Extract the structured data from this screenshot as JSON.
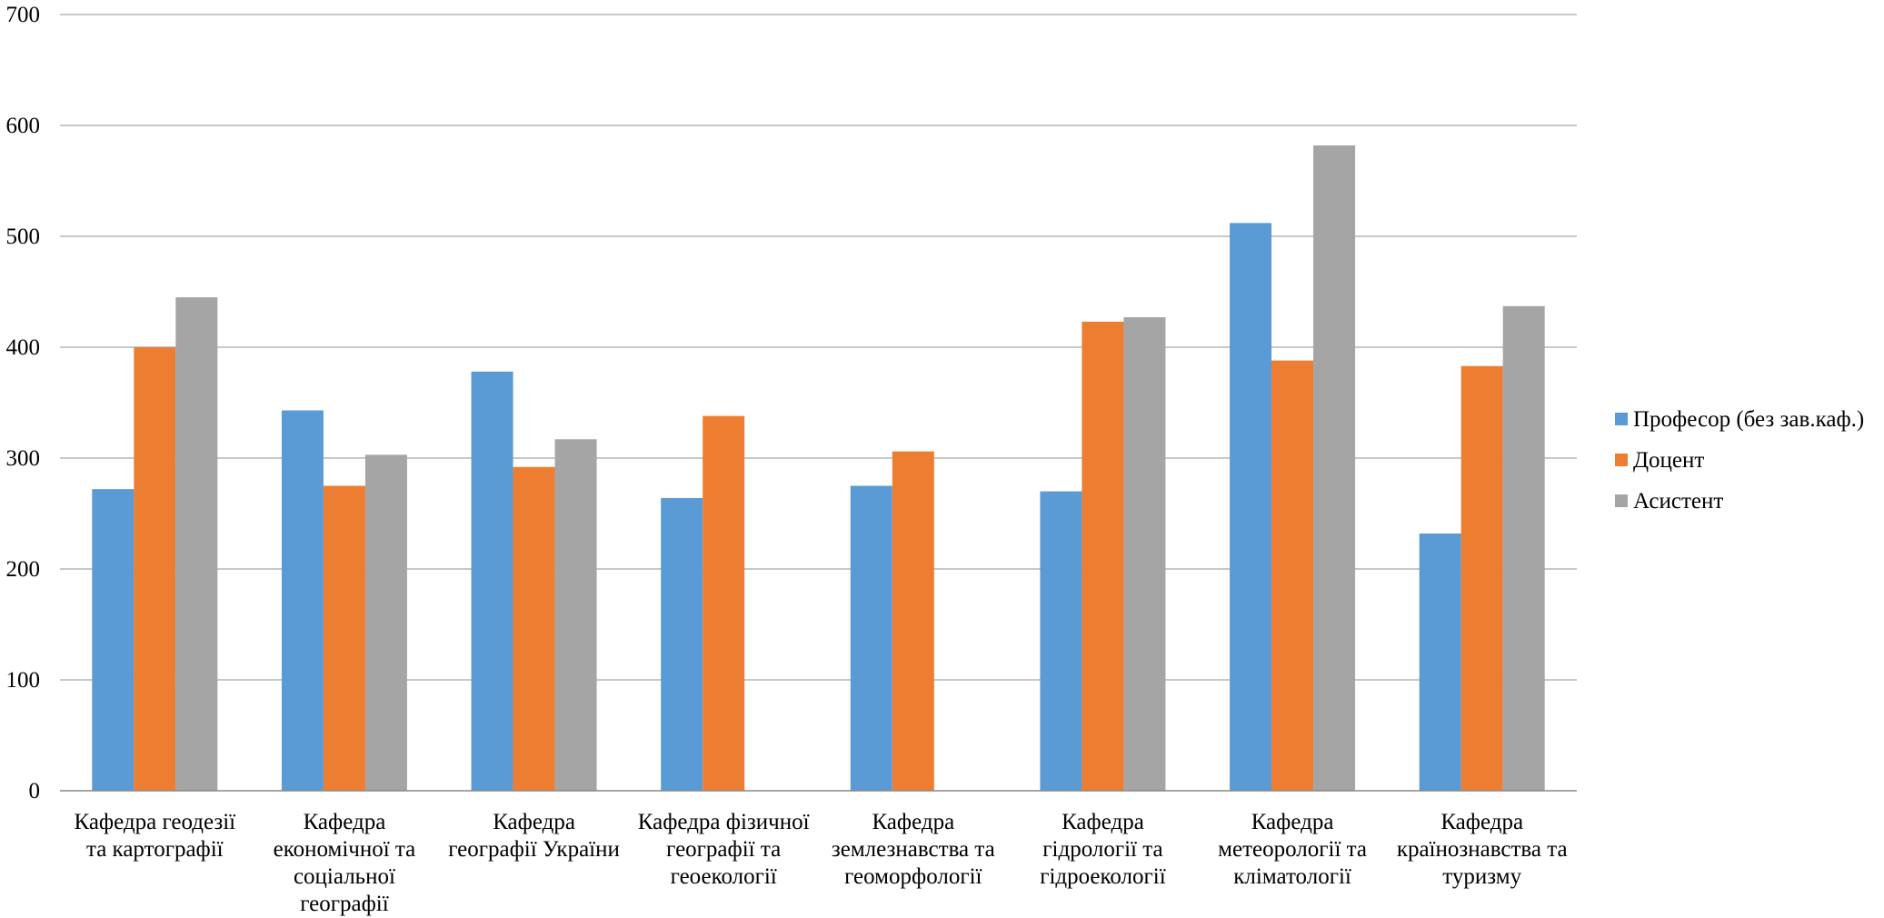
{
  "chart_data": {
    "type": "bar",
    "categories": [
      [
        "Кафедра геодезії",
        "та картографії"
      ],
      [
        "Кафедра",
        "економічної та",
        "соціальної",
        "географії"
      ],
      [
        "Кафедра",
        "географії України"
      ],
      [
        "Кафедра фізичної",
        "географії та",
        "геоекології"
      ],
      [
        "Кафедра",
        "землезнавства та",
        "геоморфології"
      ],
      [
        "Кафедра",
        "гідрології та",
        "гідроекології"
      ],
      [
        "Кафедра",
        "метеорології та",
        "кліматології"
      ],
      [
        "Кафедра",
        "країнознавства та",
        "туризму"
      ]
    ],
    "series": [
      {
        "name": "Професор (без зав.каф.)",
        "color": "#5B9BD5",
        "values": [
          272,
          343,
          378,
          264,
          275,
          270,
          512,
          232
        ]
      },
      {
        "name": "Доцент",
        "color": "#ED7D31",
        "values": [
          400,
          275,
          292,
          338,
          306,
          423,
          388,
          383
        ]
      },
      {
        "name": "Асистент",
        "color": "#A5A5A5",
        "values": [
          445,
          303,
          317,
          null,
          null,
          427,
          582,
          437
        ]
      }
    ],
    "ylim": [
      0,
      700
    ],
    "yticks": [
      0,
      100,
      200,
      300,
      400,
      500,
      600,
      700
    ],
    "grid": true,
    "legend_position": "right"
  }
}
